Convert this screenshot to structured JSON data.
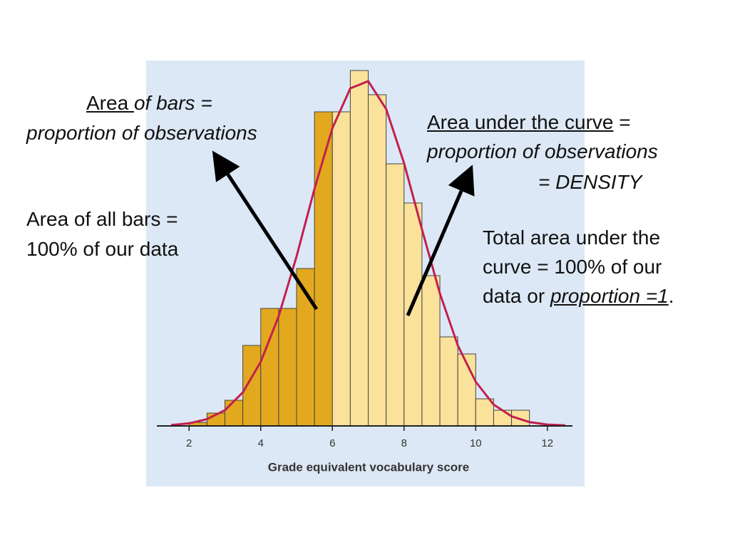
{
  "chart_data": {
    "type": "histogram",
    "bins": [
      2,
      2.5,
      3,
      3.5,
      4,
      4.5,
      5,
      5.5,
      6,
      6.5,
      7,
      7.5,
      8,
      8.5,
      9,
      9.5,
      10,
      10.5,
      11,
      11.5
    ],
    "counts": [
      5,
      18,
      36,
      113,
      165,
      165,
      221,
      441,
      441,
      499,
      465,
      368,
      313,
      211,
      125,
      101,
      38,
      22,
      22
    ],
    "bar_colors": [
      "#e2a91e",
      "#e2a91e",
      "#e2a91e",
      "#e2a91e",
      "#e2a91e",
      "#e2a91e",
      "#e2a91e",
      "#e2a91e",
      "#fbe29a",
      "#fbe29a",
      "#fbe29a",
      "#fbe29a",
      "#fbe29a",
      "#fbe29a",
      "#fbe29a",
      "#fbe29a",
      "#fbe29a",
      "#fbe29a",
      "#fbe29a"
    ],
    "curve": {
      "color": "#c21f4e",
      "x": [
        1.5,
        2,
        2.5,
        3,
        3.5,
        4,
        4.5,
        5,
        5.5,
        6,
        6.5,
        7,
        7.5,
        8,
        8.5,
        9,
        9.5,
        10,
        10.5,
        11,
        11.5,
        12,
        12.5
      ],
      "values": [
        1.3,
        3.6,
        9.5,
        22,
        47,
        90,
        154,
        238,
        333,
        418,
        474,
        484,
        445,
        369,
        276,
        186,
        113,
        62,
        30,
        13.5,
        5.4,
        1.9,
        0.7
      ]
    },
    "xlim": [
      1.1,
      12.7
    ],
    "xticks": [
      2,
      4,
      6,
      8,
      10,
      12
    ],
    "ylim": [
      0,
      510
    ],
    "x_label": "Grade equivalent vocabulary score",
    "annotations": {
      "left_top": {
        "term": "Area ",
        "rest": "of bars =",
        "line2": "proportion of observations"
      },
      "left_bottom": {
        "line1": "Area of all bars =",
        "line2": "100% of our data"
      },
      "right_top": {
        "term": "Area under the curve",
        "rest": " =",
        "line2": "proportion of observations",
        "line3": "= DENSITY"
      },
      "right_bottom": {
        "line1": "Total area under the",
        "line2": "curve = 100% of our",
        "line3_start": "data or ",
        "line3_term": "proportion =1",
        "line3_end": "."
      }
    }
  }
}
